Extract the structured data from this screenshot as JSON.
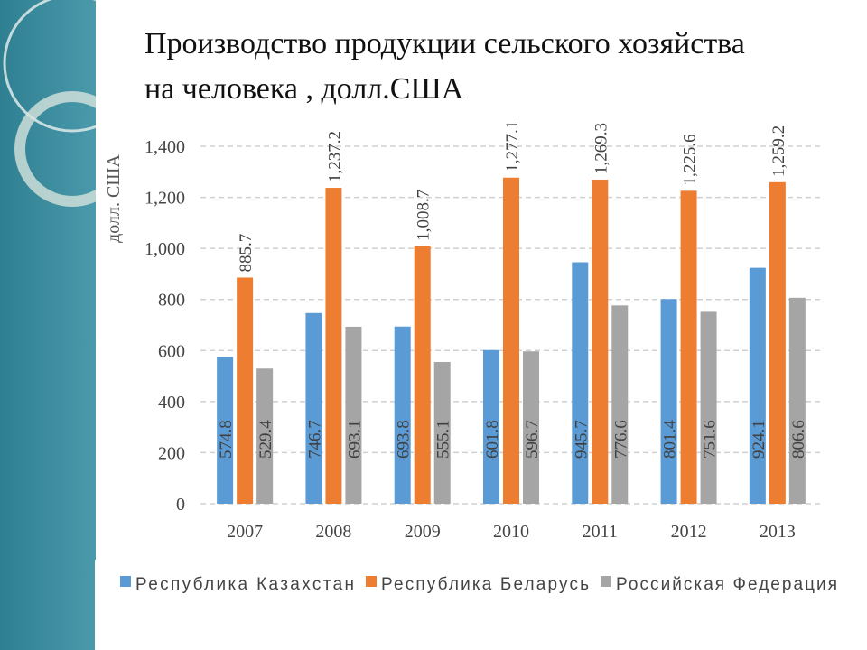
{
  "chart_data": {
    "type": "bar",
    "title": "Производство продукции сельского хозяйства на человека , долл.США",
    "y_label": "долл. США",
    "categories": [
      "2007",
      "2008",
      "2009",
      "2010",
      "2011",
      "2012",
      "2013"
    ],
    "series": [
      {
        "name": "Республика Казахстан",
        "color": "#5b9bd5",
        "values": [
          574.8,
          746.7,
          693.8,
          601.8,
          945.7,
          801.4,
          924.1
        ]
      },
      {
        "name": "Республика Беларусь",
        "color": "#ed7d31",
        "values": [
          885.7,
          1237.2,
          1008.7,
          1277.1,
          1269.3,
          1225.6,
          1259.2
        ],
        "value_labels": [
          "885.7",
          "1,237.2",
          "1,008.7",
          "1,277.1",
          "1,269.3",
          "1,225.6",
          "1,259.2"
        ]
      },
      {
        "name": "Российская Федерация",
        "color": "#a5a5a5",
        "values": [
          529.4,
          693.1,
          555.1,
          596.7,
          776.6,
          751.6,
          806.6
        ]
      }
    ],
    "ylim": [
      0,
      1400
    ],
    "yticks": [
      0,
      200,
      400,
      600,
      800,
      {
        "value": 1000,
        "label": "1,000"
      },
      {
        "value": 1200,
        "label": "1,200"
      },
      {
        "value": 1400,
        "label": "1,400"
      }
    ],
    "grid": true
  }
}
